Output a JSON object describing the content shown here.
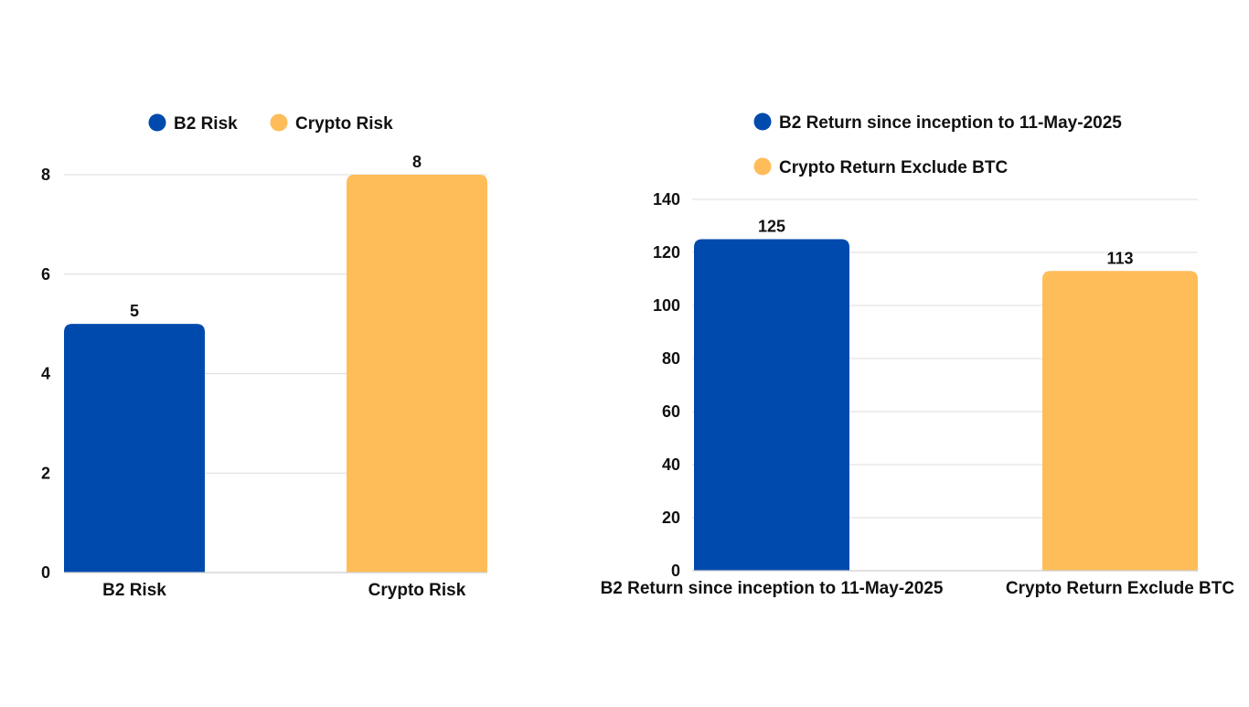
{
  "colors": {
    "blue": "#004AAD",
    "yellow": "#FFBD59"
  },
  "chart_data": [
    {
      "type": "bar",
      "categories": [
        "B2 Risk",
        "Crypto Risk"
      ],
      "values": [
        5,
        8
      ],
      "data_labels": [
        "5",
        "8"
      ],
      "bar_colors": [
        "#004AAD",
        "#FFBD59"
      ],
      "legend": [
        "B2 Risk",
        "Crypto Risk"
      ],
      "legend_position": "top",
      "yticks": [
        "0",
        "2",
        "4",
        "6",
        "8"
      ],
      "ylim": [
        0,
        8
      ],
      "grid": true,
      "title": "",
      "xlabel": "",
      "ylabel": ""
    },
    {
      "type": "bar",
      "categories": [
        "B2 Return since inception to 11-May-2025",
        "Crypto Return Exclude BTC"
      ],
      "values": [
        125,
        113
      ],
      "data_labels": [
        "125",
        "113"
      ],
      "bar_colors": [
        "#004AAD",
        "#FFBD59"
      ],
      "legend": [
        "B2 Return since inception to 11-May-2025",
        "Crypto Return Exclude BTC"
      ],
      "legend_position": "top",
      "yticks": [
        "0",
        "20",
        "40",
        "60",
        "80",
        "100",
        "120",
        "140"
      ],
      "ylim": [
        0,
        140
      ],
      "grid": true,
      "title": "",
      "xlabel": "",
      "ylabel": ""
    }
  ]
}
